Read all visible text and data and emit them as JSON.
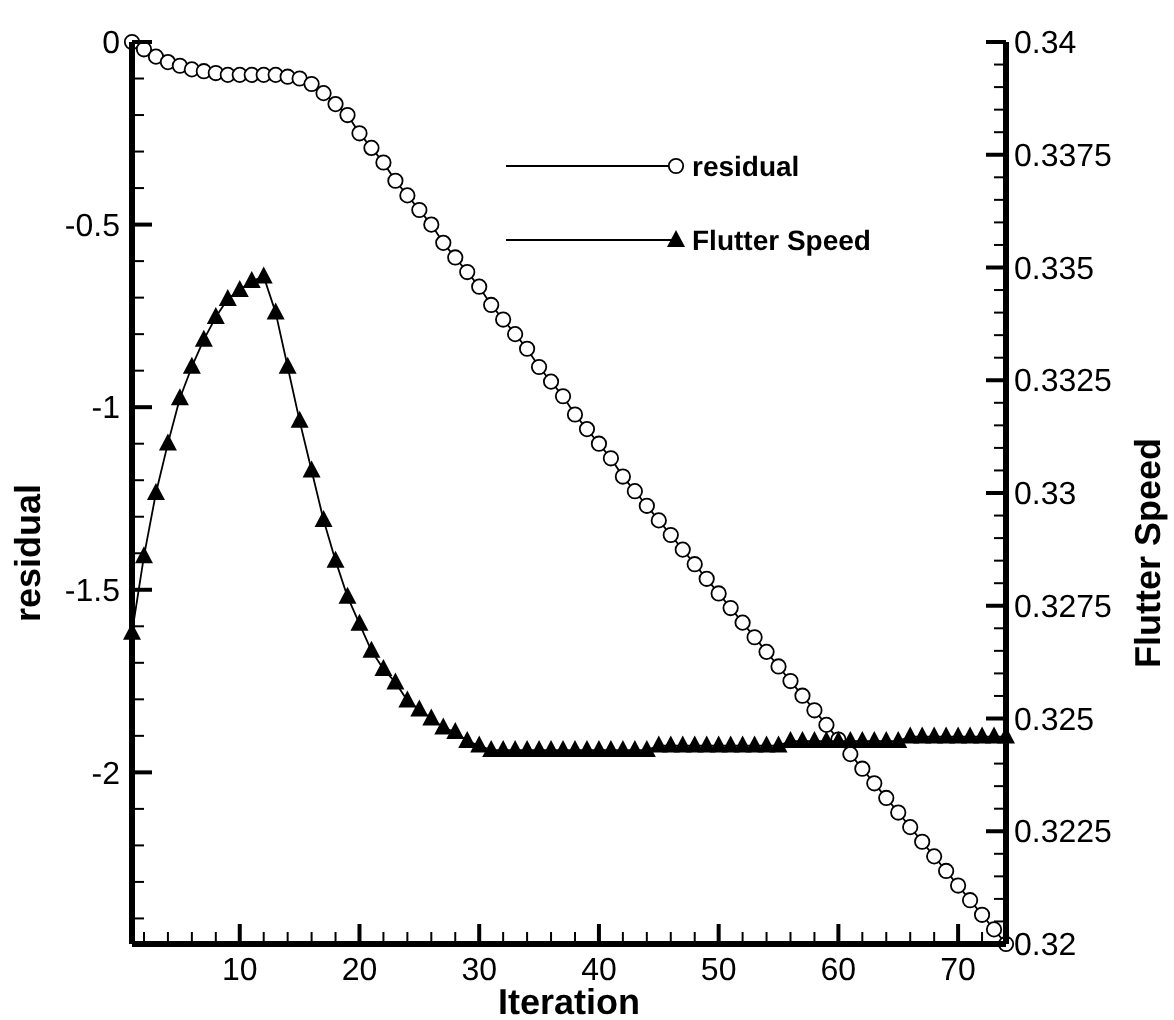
{
  "chart_data": {
    "type": "line",
    "xlabel": "Iteration",
    "ylabel": "residual",
    "y2label": "Flutter Speed",
    "x": [
      1,
      2,
      3,
      4,
      5,
      6,
      7,
      8,
      9,
      10,
      11,
      12,
      13,
      14,
      15,
      16,
      17,
      18,
      19,
      20,
      21,
      22,
      23,
      24,
      25,
      26,
      27,
      28,
      29,
      30,
      31,
      32,
      33,
      34,
      35,
      36,
      37,
      38,
      39,
      40,
      41,
      42,
      43,
      44,
      45,
      46,
      47,
      48,
      49,
      50,
      51,
      52,
      53,
      54,
      55,
      56,
      57,
      58,
      59,
      60,
      61,
      62,
      63,
      64,
      65,
      66,
      67,
      68,
      69,
      70,
      71,
      72,
      73,
      74
    ],
    "series": [
      {
        "name": "residual",
        "color": "#000000",
        "marker": "circle",
        "values": [
          0,
          -0.02,
          -0.04,
          -0.055,
          -0.065,
          -0.075,
          -0.08,
          -0.085,
          -0.09,
          -0.09,
          -0.09,
          -0.09,
          -0.09,
          -0.095,
          -0.1,
          -0.115,
          -0.14,
          -0.17,
          -0.2,
          -0.25,
          -0.29,
          -0.33,
          -0.38,
          -0.42,
          -0.46,
          -0.5,
          -0.55,
          -0.59,
          -0.63,
          -0.67,
          -0.72,
          -0.76,
          -0.8,
          -0.84,
          -0.89,
          -0.93,
          -0.97,
          -1.02,
          -1.06,
          -1.1,
          -1.14,
          -1.19,
          -1.23,
          -1.27,
          -1.31,
          -1.35,
          -1.39,
          -1.43,
          -1.47,
          -1.51,
          -1.55,
          -1.59,
          -1.63,
          -1.67,
          -1.71,
          -1.75,
          -1.79,
          -1.83,
          -1.87,
          -1.91,
          -1.95,
          -1.99,
          -2.03,
          -2.07,
          -2.11,
          -2.15,
          -2.19,
          -2.23,
          -2.27,
          -2.31,
          -2.35,
          -2.39,
          -2.43,
          -2.47
        ]
      },
      {
        "name": "Flutter Speed",
        "color": "#000000",
        "marker": "triangle",
        "axis": "y2",
        "values": [
          0.3269,
          0.3286,
          0.33,
          0.3311,
          0.3321,
          0.3328,
          0.3334,
          0.3339,
          0.3343,
          0.3345,
          0.3347,
          0.3348,
          0.334,
          0.3328,
          0.3316,
          0.3305,
          0.3294,
          0.3285,
          0.3277,
          0.3271,
          0.3265,
          0.3261,
          0.3258,
          0.3254,
          0.3252,
          0.325,
          0.3248,
          0.3247,
          0.3245,
          0.3244,
          0.3243,
          0.3243,
          0.3243,
          0.3243,
          0.3243,
          0.3243,
          0.3243,
          0.3243,
          0.3243,
          0.3243,
          0.3243,
          0.3243,
          0.3243,
          0.3243,
          0.3244,
          0.3244,
          0.3244,
          0.3244,
          0.3244,
          0.3244,
          0.3244,
          0.3244,
          0.3244,
          0.3244,
          0.3244,
          0.3245,
          0.3245,
          0.3245,
          0.3245,
          0.3245,
          0.3245,
          0.3245,
          0.3245,
          0.3245,
          0.3245,
          0.3246,
          0.3246,
          0.3246,
          0.3246,
          0.3246,
          0.3246,
          0.3246,
          0.3246,
          0.3246
        ]
      }
    ],
    "xlim": [
      1,
      74
    ],
    "xticks": [
      {
        "value": 2,
        "label": null
      },
      {
        "value": 4,
        "label": null
      },
      {
        "value": 6,
        "label": null
      },
      {
        "value": 8,
        "label": null
      },
      10,
      {
        "value": 12,
        "label": null
      },
      {
        "value": 14,
        "label": null
      },
      {
        "value": 16,
        "label": null
      },
      {
        "value": 18,
        "label": null
      },
      20,
      {
        "value": 22,
        "label": null
      },
      {
        "value": 24,
        "label": null
      },
      {
        "value": 26,
        "label": null
      },
      {
        "value": 28,
        "label": null
      },
      30,
      {
        "value": 32,
        "label": null
      },
      {
        "value": 34,
        "label": null
      },
      {
        "value": 36,
        "label": null
      },
      {
        "value": 38,
        "label": null
      },
      40,
      {
        "value": 42,
        "label": null
      },
      {
        "value": 44,
        "label": null
      },
      {
        "value": 46,
        "label": null
      },
      {
        "value": 48,
        "label": null
      },
      50,
      {
        "value": 52,
        "label": null
      },
      {
        "value": 54,
        "label": null
      },
      {
        "value": 56,
        "label": null
      },
      {
        "value": 58,
        "label": null
      },
      60,
      {
        "value": 62,
        "label": null
      },
      {
        "value": 64,
        "label": null
      },
      {
        "value": 66,
        "label": null
      },
      {
        "value": 68,
        "label": null
      },
      70,
      {
        "value": 72,
        "label": null
      }
    ],
    "ylim": [
      -2.47,
      0
    ],
    "yticks": [
      0,
      {
        "value": -0.1,
        "label": null
      },
      {
        "value": -0.2,
        "label": null
      },
      {
        "value": -0.3,
        "label": null
      },
      {
        "value": -0.4,
        "label": null
      },
      -0.5,
      {
        "value": -0.6,
        "label": null
      },
      {
        "value": -0.7,
        "label": null
      },
      {
        "value": -0.8,
        "label": null
      },
      {
        "value": -0.9,
        "label": null
      },
      -1,
      {
        "value": -1.1,
        "label": null
      },
      {
        "value": -1.2,
        "label": null
      },
      {
        "value": -1.3,
        "label": null
      },
      {
        "value": -1.4,
        "label": null
      },
      -1.5,
      {
        "value": -1.6,
        "label": null
      },
      {
        "value": -1.7,
        "label": null
      },
      {
        "value": -1.8,
        "label": null
      },
      {
        "value": -1.9,
        "label": null
      },
      -2,
      {
        "value": -2.1,
        "label": null
      },
      {
        "value": -2.2,
        "label": null
      },
      {
        "value": -2.3,
        "label": null
      },
      {
        "value": -2.4,
        "label": null
      }
    ],
    "y2lim": [
      0.32,
      0.34
    ],
    "y2ticks": [
      0.32,
      {
        "value": 0.3205,
        "label": null
      },
      {
        "value": 0.321,
        "label": null
      },
      {
        "value": 0.3215,
        "label": null
      },
      {
        "value": 0.322,
        "label": null
      },
      0.3225,
      {
        "value": 0.323,
        "label": null
      },
      {
        "value": 0.3235,
        "label": null
      },
      {
        "value": 0.324,
        "label": null
      },
      {
        "value": 0.3245,
        "label": null
      },
      0.325,
      {
        "value": 0.3255,
        "label": null
      },
      {
        "value": 0.326,
        "label": null
      },
      {
        "value": 0.3265,
        "label": null
      },
      {
        "value": 0.327,
        "label": null
      },
      0.3275,
      {
        "value": 0.328,
        "label": null
      },
      {
        "value": 0.3285,
        "label": null
      },
      {
        "value": 0.329,
        "label": null
      },
      {
        "value": 0.3295,
        "label": null
      },
      0.33,
      {
        "value": 0.3305,
        "label": null
      },
      {
        "value": 0.331,
        "label": null
      },
      {
        "value": 0.3315,
        "label": null
      },
      {
        "value": 0.332,
        "label": null
      },
      0.3325,
      {
        "value": 0.333,
        "label": null
      },
      {
        "value": 0.3335,
        "label": null
      },
      {
        "value": 0.334,
        "label": null
      },
      {
        "value": 0.3345,
        "label": null
      },
      0.335,
      {
        "value": 0.3355,
        "label": null
      },
      {
        "value": 0.336,
        "label": null
      },
      {
        "value": 0.3365,
        "label": null
      },
      {
        "value": 0.337,
        "label": null
      },
      0.3375,
      {
        "value": 0.338,
        "label": null
      },
      {
        "value": 0.3385,
        "label": null
      },
      {
        "value": 0.339,
        "label": null
      },
      {
        "value": 0.3395,
        "label": null
      },
      0.34
    ],
    "grid": false,
    "legend": "top right",
    "line_style": "solid"
  }
}
